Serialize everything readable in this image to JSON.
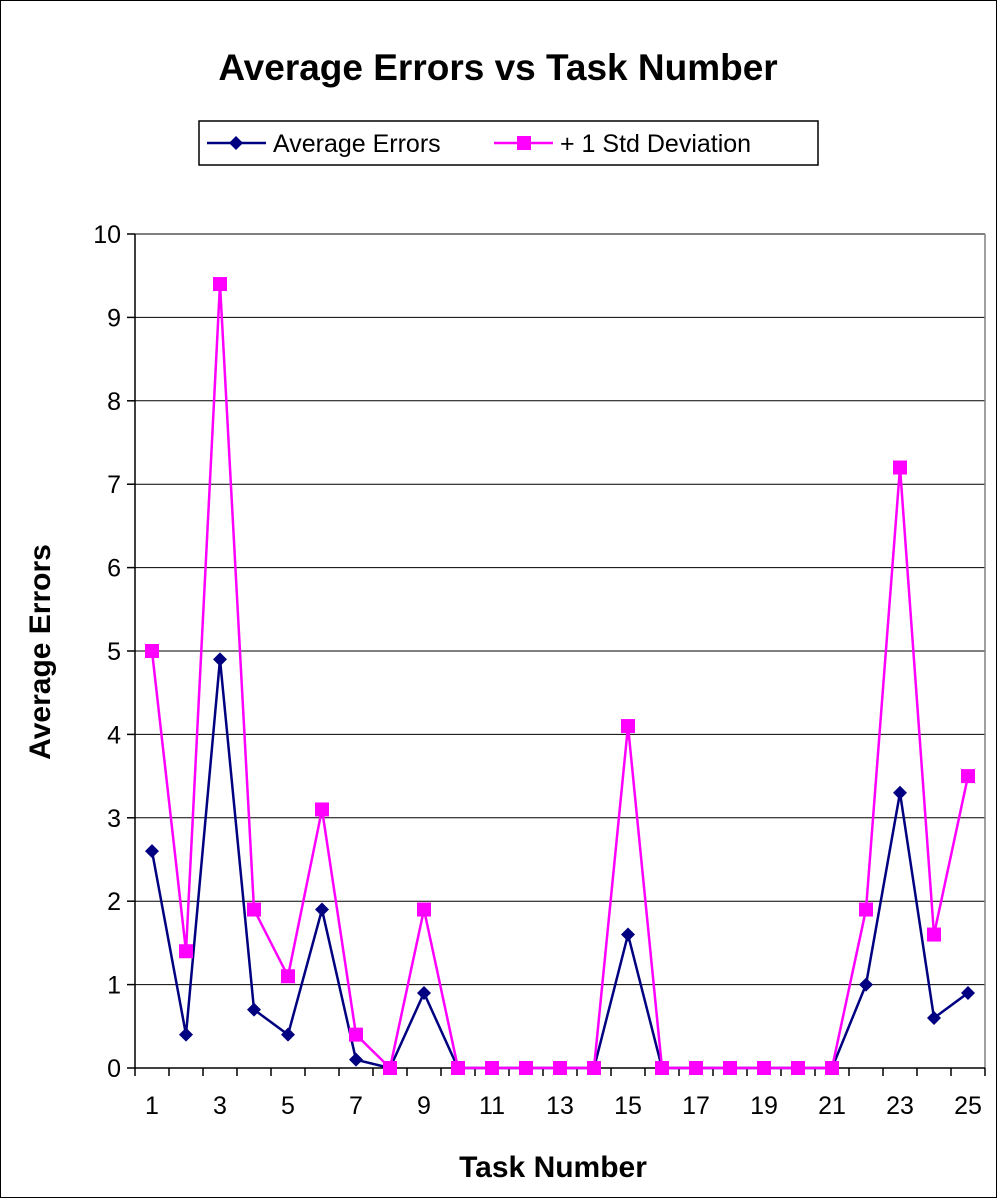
{
  "chart_data": {
    "type": "line",
    "title": "Average Errors vs Task Number",
    "xlabel": "Task Number",
    "ylabel": "Average Errors",
    "ylim": [
      0,
      10
    ],
    "y_ticks": [
      "0",
      "1",
      "2",
      "3",
      "4",
      "5",
      "6",
      "7",
      "8",
      "9",
      "10"
    ],
    "x_tick_labels": [
      "1",
      "3",
      "5",
      "7",
      "9",
      "11",
      "13",
      "15",
      "17",
      "19",
      "21",
      "23",
      "25"
    ],
    "grid": "horizontal",
    "legend_position": "top",
    "x": [
      1,
      2,
      3,
      4,
      5,
      6,
      7,
      8,
      9,
      10,
      11,
      12,
      13,
      14,
      15,
      16,
      17,
      18,
      19,
      20,
      21,
      22,
      23,
      24,
      25
    ],
    "series": [
      {
        "name": "Average Errors",
        "color": "#000080",
        "marker": "diamond",
        "values": [
          2.6,
          0.4,
          4.9,
          0.7,
          0.4,
          1.9,
          0.1,
          0,
          0.9,
          0,
          0,
          0,
          0,
          0,
          1.6,
          0,
          0,
          0,
          0,
          0,
          0,
          1.0,
          3.3,
          0.6,
          0.9
        ]
      },
      {
        "name": "+ 1 Std Deviation",
        "color": "#FF00FF",
        "marker": "square",
        "values": [
          5.0,
          1.4,
          9.4,
          1.9,
          1.1,
          3.1,
          0.4,
          0,
          1.9,
          0,
          0,
          0,
          0,
          0,
          4.1,
          0,
          0,
          0,
          0,
          0,
          0,
          1.9,
          7.2,
          1.6,
          3.5
        ]
      }
    ]
  }
}
